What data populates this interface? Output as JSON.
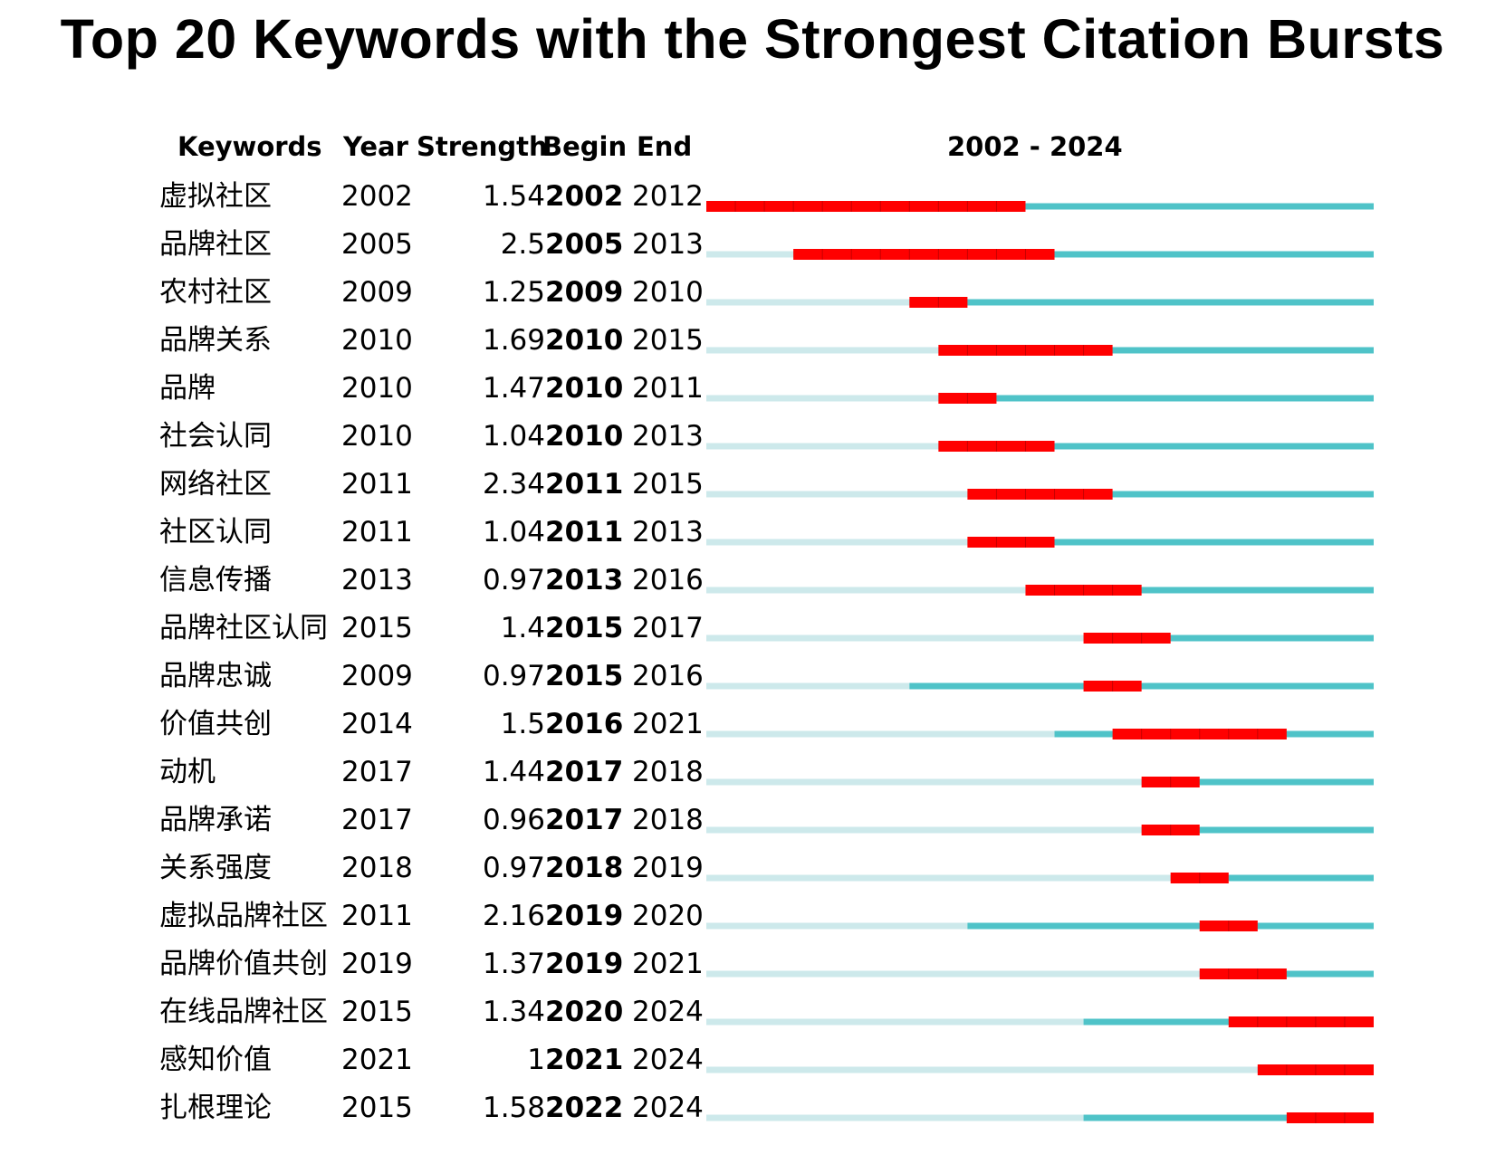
{
  "title": "Top 20 Keywords with the Strongest Citation Bursts",
  "headers": {
    "keywords": "Keywords",
    "year": "Year",
    "strength": "Strength",
    "begin": "Begin",
    "end": "End",
    "range": "2002 - 2024"
  },
  "colors": {
    "burst": "#ff0000",
    "active": "#4fc3c8",
    "inactive": "#cde9eb"
  },
  "chart_data": {
    "type": "bar",
    "year_range": [
      2002,
      2024
    ],
    "rows": [
      {
        "keyword": "虚拟社区",
        "year": "2002",
        "strength": "1.54",
        "begin": "2002",
        "end": "2012"
      },
      {
        "keyword": "品牌社区",
        "year": "2005",
        "strength": "2.5",
        "begin": "2005",
        "end": "2013"
      },
      {
        "keyword": "农村社区",
        "year": "2009",
        "strength": "1.25",
        "begin": "2009",
        "end": "2010"
      },
      {
        "keyword": "品牌关系",
        "year": "2010",
        "strength": "1.69",
        "begin": "2010",
        "end": "2015"
      },
      {
        "keyword": "品牌",
        "year": "2010",
        "strength": "1.47",
        "begin": "2010",
        "end": "2011"
      },
      {
        "keyword": "社会认同",
        "year": "2010",
        "strength": "1.04",
        "begin": "2010",
        "end": "2013"
      },
      {
        "keyword": "网络社区",
        "year": "2011",
        "strength": "2.34",
        "begin": "2011",
        "end": "2015"
      },
      {
        "keyword": "社区认同",
        "year": "2011",
        "strength": "1.04",
        "begin": "2011",
        "end": "2013"
      },
      {
        "keyword": "信息传播",
        "year": "2013",
        "strength": "0.97",
        "begin": "2013",
        "end": "2016"
      },
      {
        "keyword": "品牌社区认同",
        "year": "2015",
        "strength": "1.4",
        "begin": "2015",
        "end": "2017"
      },
      {
        "keyword": "品牌忠诚",
        "year": "2009",
        "strength": "0.97",
        "begin": "2015",
        "end": "2016"
      },
      {
        "keyword": "价值共创",
        "year": "2014",
        "strength": "1.5",
        "begin": "2016",
        "end": "2021"
      },
      {
        "keyword": "动机",
        "year": "2017",
        "strength": "1.44",
        "begin": "2017",
        "end": "2018"
      },
      {
        "keyword": "品牌承诺",
        "year": "2017",
        "strength": "0.96",
        "begin": "2017",
        "end": "2018"
      },
      {
        "keyword": "关系强度",
        "year": "2018",
        "strength": "0.97",
        "begin": "2018",
        "end": "2019"
      },
      {
        "keyword": "虚拟品牌社区",
        "year": "2011",
        "strength": "2.16",
        "begin": "2019",
        "end": "2020"
      },
      {
        "keyword": "品牌价值共创",
        "year": "2019",
        "strength": "1.37",
        "begin": "2019",
        "end": "2021"
      },
      {
        "keyword": "在线品牌社区",
        "year": "2015",
        "strength": "1.34",
        "begin": "2020",
        "end": "2024"
      },
      {
        "keyword": "感知价值",
        "year": "2021",
        "strength": "1",
        "begin": "2021",
        "end": "2024"
      },
      {
        "keyword": "扎根理论",
        "year": "2015",
        "strength": "1.58",
        "begin": "2022",
        "end": "2024"
      }
    ]
  }
}
